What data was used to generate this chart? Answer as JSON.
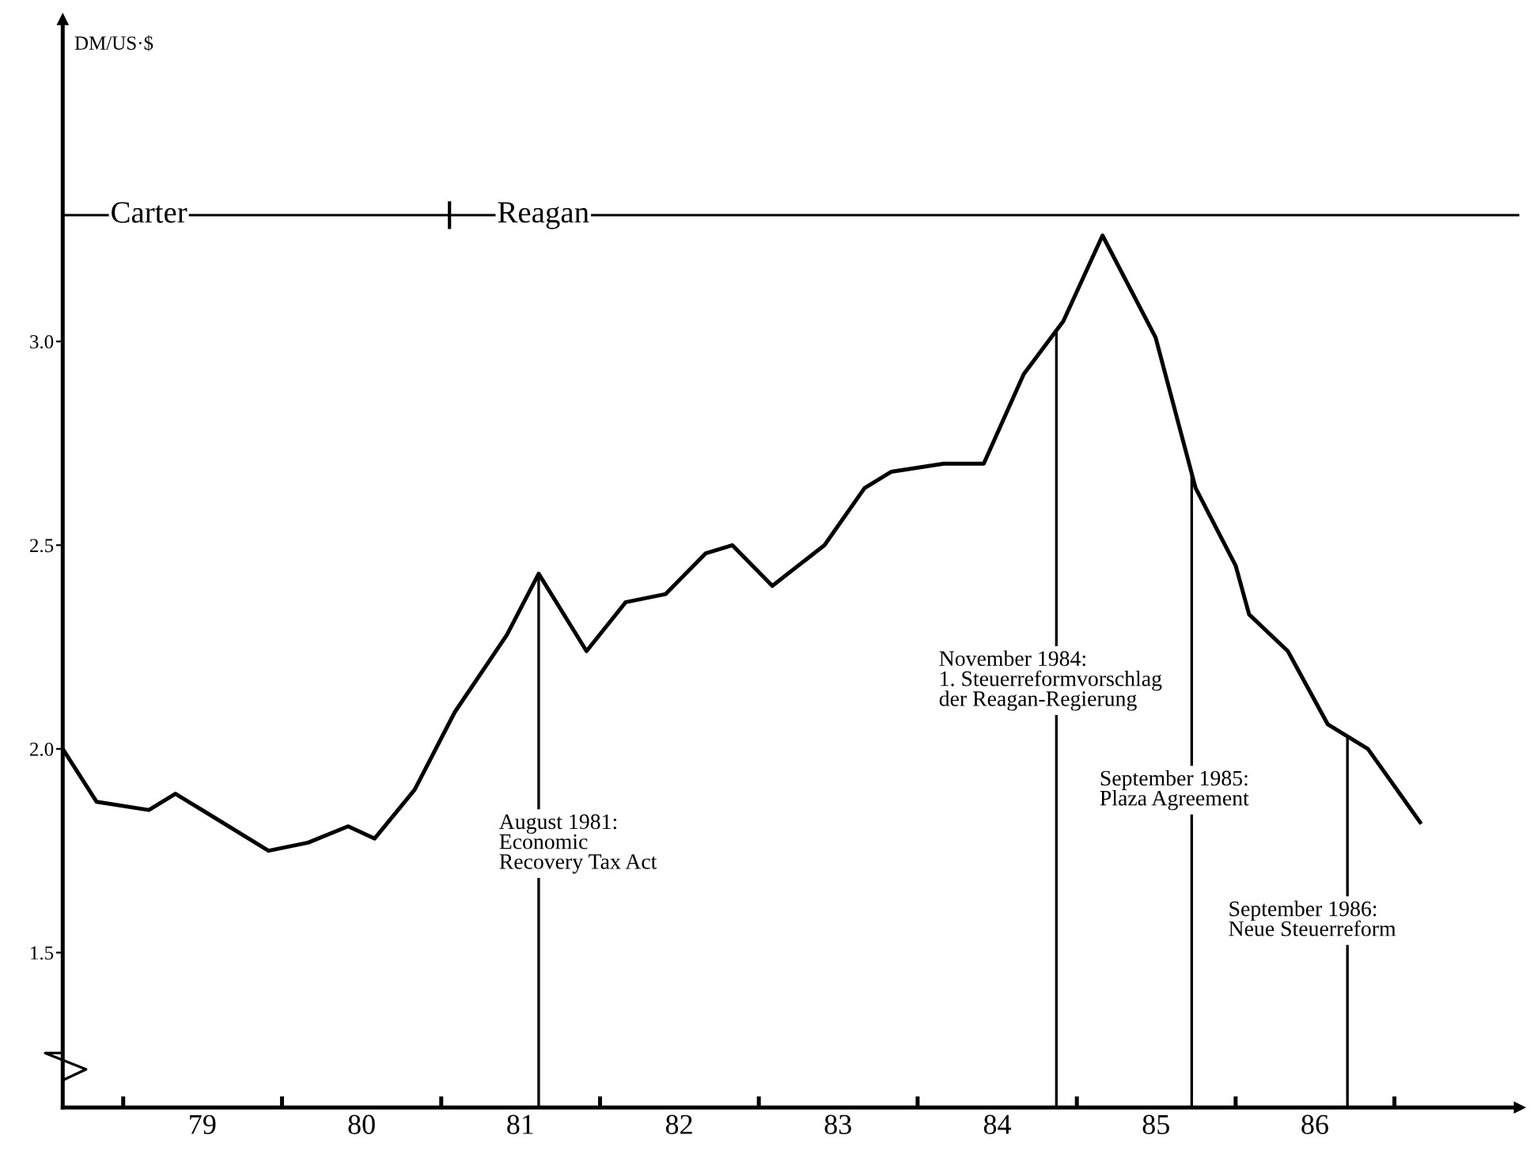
{
  "chart_data": {
    "type": "line",
    "ylabel": "DM/US·$",
    "x": [
      "1978-08-15",
      "1978-11",
      "1979-03",
      "1979-05",
      "1979-12",
      "1980-03",
      "1980-06",
      "1980-08",
      "1980-11",
      "1981-02",
      "1981-06",
      "1981-08-13",
      "1981-12",
      "1982-03",
      "1982-06",
      "1982-09",
      "1982-11",
      "1983-02",
      "1983-06",
      "1983-09",
      "1983-11",
      "1984-03",
      "1984-06",
      "1984-09",
      "1984-12",
      "1985-03",
      "1985-07",
      "1985-10",
      "1986-01",
      "1986-02",
      "1986-05",
      "1986-08",
      "1986-11",
      "1987-03"
    ],
    "series": [
      {
        "color": "#000000",
        "values": [
          2.0,
          1.87,
          1.85,
          1.89,
          1.75,
          1.77,
          1.81,
          1.78,
          1.9,
          2.09,
          2.28,
          2.43,
          2.24,
          2.36,
          2.38,
          2.48,
          2.5,
          2.4,
          2.5,
          2.64,
          2.68,
          2.7,
          2.7,
          2.92,
          3.05,
          3.26,
          3.01,
          2.64,
          2.45,
          2.33,
          2.24,
          2.06,
          2.0,
          1.82
        ]
      }
    ],
    "xlim": [
      "1978-08-15",
      "1987-10-15"
    ],
    "ylim": [
      1.12,
      3.79
    ],
    "xticks": [
      {
        "value": "1979-01-01",
        "label": null
      },
      {
        "value": "1979-07-02",
        "label": "79"
      },
      {
        "value": "1980-01-01",
        "label": null
      },
      {
        "value": "1980-07-02",
        "label": "80"
      },
      {
        "value": "1981-01-01",
        "label": null
      },
      {
        "value": "1981-07-02",
        "label": "81"
      },
      {
        "value": "1982-01-01",
        "label": null
      },
      {
        "value": "1982-07-02",
        "label": "82"
      },
      {
        "value": "1983-01-01",
        "label": null
      },
      {
        "value": "1983-07-02",
        "label": "83"
      },
      {
        "value": "1984-01-01",
        "label": null
      },
      {
        "value": "1984-07-02",
        "label": "84"
      },
      {
        "value": "1985-01-01",
        "label": null
      },
      {
        "value": "1985-07-02",
        "label": "85"
      },
      {
        "value": "1986-01-01",
        "label": null
      },
      {
        "value": "1986-07-02",
        "label": "86"
      },
      {
        "value": "1987-01-01",
        "label": null
      }
    ],
    "yticks": [
      {
        "value": 1.5,
        "label": "1.5"
      },
      {
        "value": 2.0,
        "label": "2.0"
      },
      {
        "value": 2.5,
        "label": "2.5"
      },
      {
        "value": 3.0,
        "label": "3.0"
      }
    ],
    "ref_lines": [
      {
        "axis": "x",
        "value": "1981-08-13",
        "label": "August 1981:\nEconomic\nRecovery Tax Act"
      },
      {
        "axis": "x",
        "value": "1984-11-15",
        "label": "November 1984:\n1. Steuerreformvorschlag\nder Reagan-Regierung"
      },
      {
        "axis": "x",
        "value": "1985-09-22",
        "label": "September 1985:\nPlaza Agreement"
      },
      {
        "axis": "x",
        "value": "1986-09-15",
        "label": "September 1986:\nNeue Steuerreform"
      },
      {
        "axis": "y",
        "value": 3.31
      }
    ],
    "annotations": [
      {
        "text": "Carter",
        "x": "1978-08-15",
        "y": 3.31
      },
      {
        "text": "Reagan",
        "x": "1981-01-20",
        "y": 3.31
      }
    ],
    "grid": false,
    "marker": "none",
    "line_style": "solid"
  }
}
